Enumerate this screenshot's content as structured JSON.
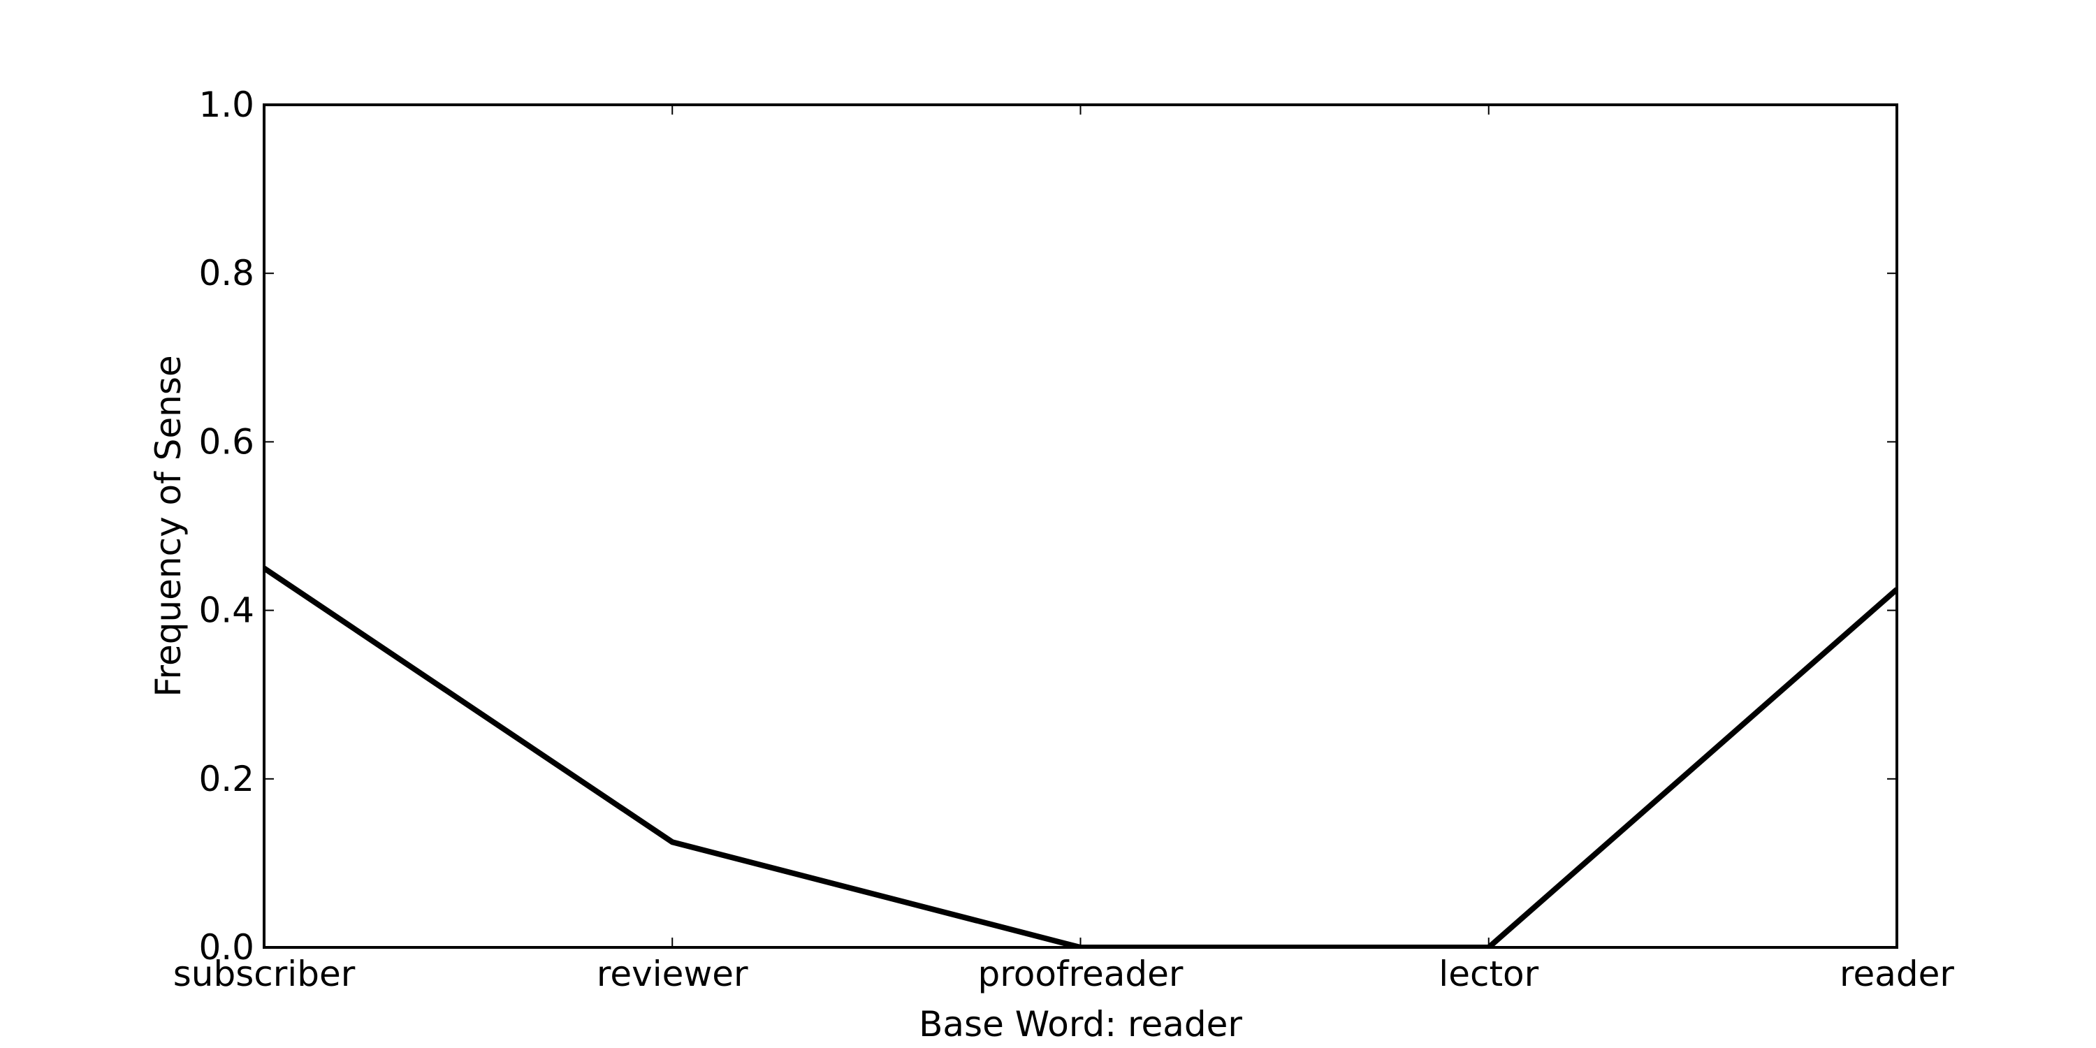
{
  "chart_data": {
    "type": "line",
    "title": "",
    "xlabel": "Base Word: reader",
    "ylabel": "Frequency of Sense",
    "categories": [
      "subscriber",
      "reviewer",
      "proofreader",
      "lector",
      "reader"
    ],
    "series": [
      {
        "values": [
          0.45,
          0.125,
          0.0,
          0.0,
          0.425
        ],
        "color": "#000000"
      }
    ],
    "ylim": [
      0.0,
      1.0
    ],
    "yticks": [
      0.0,
      0.2,
      0.4,
      0.6,
      0.8,
      1.0
    ],
    "ytick_labels": [
      "0.0",
      "0.2",
      "0.4",
      "0.6",
      "0.8",
      "1.0"
    ],
    "grid": false,
    "legend": "none"
  }
}
